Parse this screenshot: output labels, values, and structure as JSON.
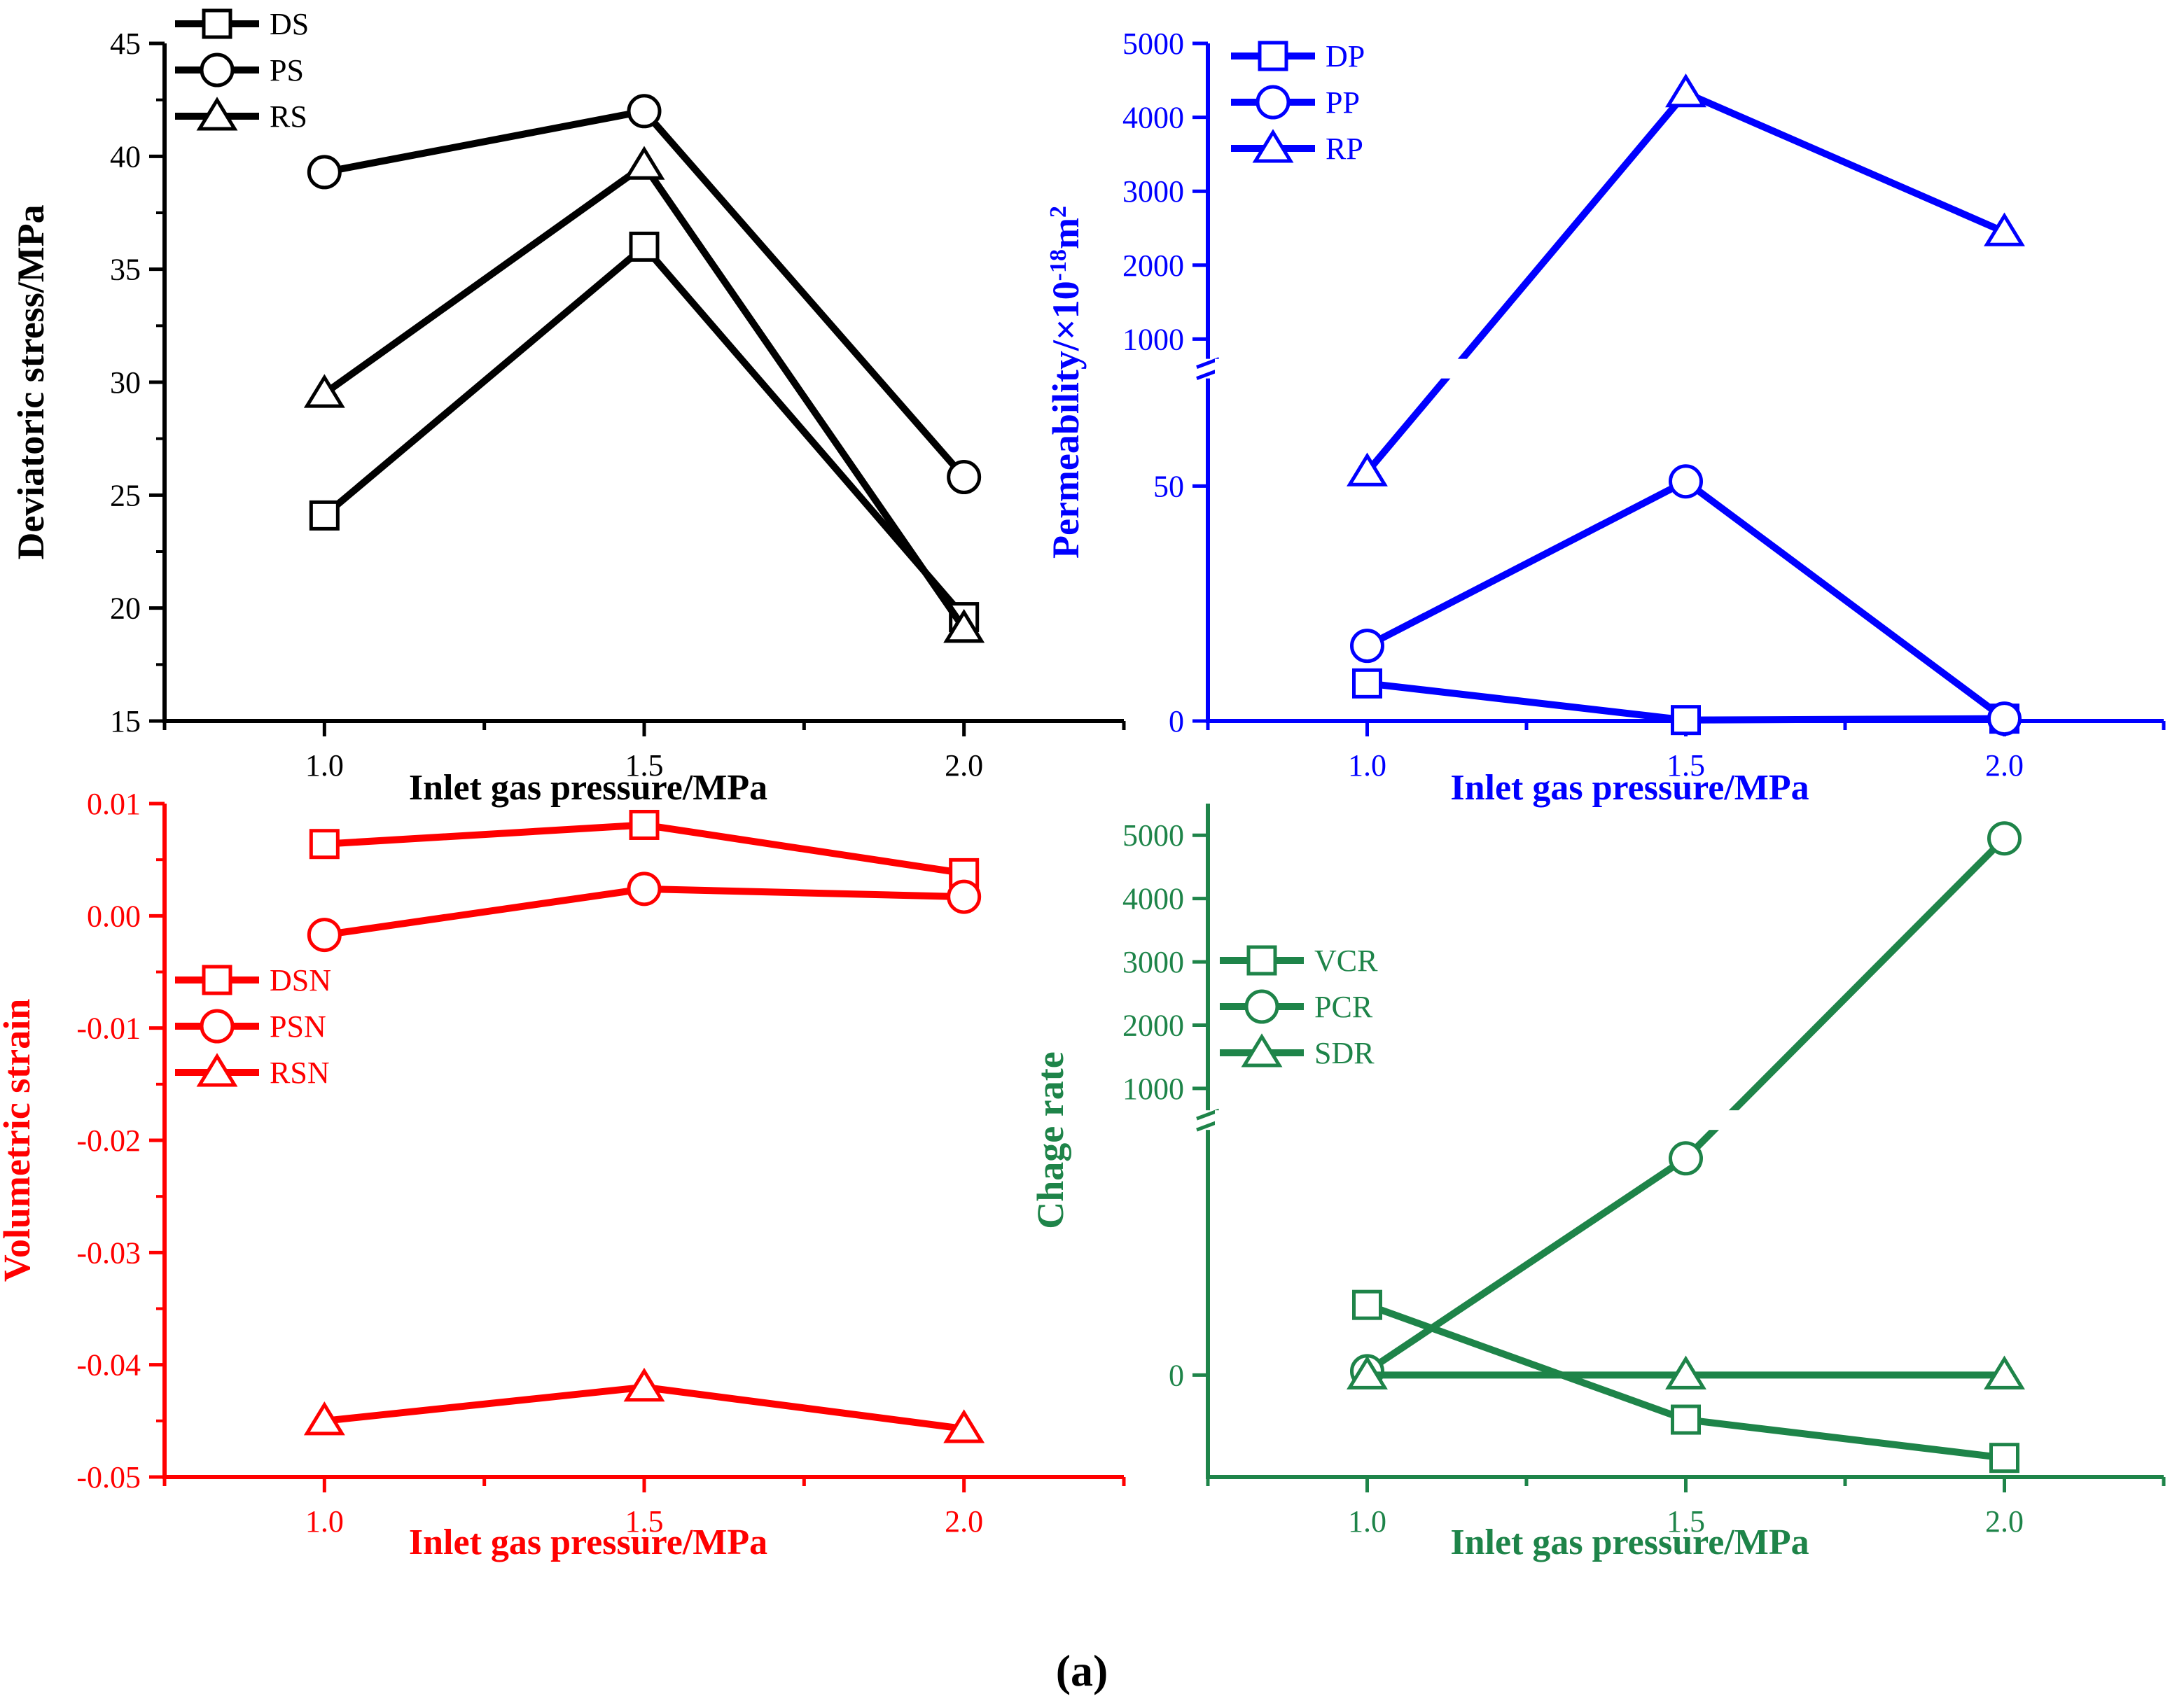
{
  "figure": {
    "label": "(a)"
  },
  "chart_data": [
    {
      "id": "stress",
      "type": "line",
      "color": "#000000",
      "ylabel": "Deviatoric stress/MPa",
      "xlabel": "Inlet gas pressure/MPa",
      "x": [
        1.0,
        1.5,
        2.0
      ],
      "xticks": [
        "1.0",
        "1.5",
        "2.0"
      ],
      "xlim": [
        0.75,
        2.25
      ],
      "ylim": [
        15,
        45
      ],
      "yticks": [
        "15",
        "20",
        "25",
        "30",
        "35",
        "40",
        "45"
      ],
      "yticks_values": [
        15,
        20,
        25,
        30,
        35,
        40,
        45
      ],
      "legend_position": "top-left",
      "series": [
        {
          "name": "DS",
          "marker": "square",
          "values": [
            24.1,
            36.0,
            19.6
          ]
        },
        {
          "name": "PS",
          "marker": "circle",
          "values": [
            39.3,
            42.0,
            25.8
          ]
        },
        {
          "name": "RS",
          "marker": "triangle",
          "values": [
            29.5,
            39.6,
            19.1
          ]
        }
      ]
    },
    {
      "id": "permeability",
      "type": "line",
      "broken_axis": true,
      "color": "#0000ff",
      "ylabel_main": "Permeability/×10",
      "ylabel_exp": "-18",
      "ylabel_unit": "m",
      "ylabel_unit_exp": "2",
      "xlabel": "Inlet gas pressure/MPa",
      "x": [
        1.0,
        1.5,
        2.0
      ],
      "xticks": [
        "1.0",
        "1.5",
        "2.0"
      ],
      "xlim": [
        0.75,
        2.25
      ],
      "ylim_lower": [
        0,
        75
      ],
      "ylim_upper": [
        600,
        5000
      ],
      "yticks": [
        "0",
        "50",
        "1000",
        "2000",
        "3000",
        "4000",
        "5000"
      ],
      "yticks_values": [
        0,
        50,
        1000,
        2000,
        3000,
        4000,
        5000
      ],
      "legend_position": "top-left",
      "series": [
        {
          "name": "DP",
          "marker": "square",
          "values": [
            8,
            0.2,
            0.5
          ]
        },
        {
          "name": "PP",
          "marker": "circle",
          "values": [
            16,
            51,
            0.5
          ]
        },
        {
          "name": "RP",
          "marker": "triangle",
          "values": [
            53,
            4330,
            2450
          ]
        }
      ]
    },
    {
      "id": "strain",
      "type": "line",
      "color": "#ff0000",
      "ylabel": "Volumetric strain",
      "xlabel": "Inlet gas pressure/MPa",
      "x": [
        1.0,
        1.5,
        2.0
      ],
      "xticks": [
        "1.0",
        "1.5",
        "2.0"
      ],
      "xlim": [
        0.75,
        2.25
      ],
      "ylim": [
        -0.05,
        0.01
      ],
      "yticks": [
        "-0.05",
        "-0.04",
        "-0.03",
        "-0.02",
        "-0.01",
        "0.00",
        "0.01"
      ],
      "yticks_values": [
        -0.05,
        -0.04,
        -0.03,
        -0.02,
        -0.01,
        0.0,
        0.01
      ],
      "legend_position": "left",
      "series": [
        {
          "name": "DSN",
          "marker": "square",
          "values": [
            0.0064,
            0.0081,
            0.0038
          ]
        },
        {
          "name": "PSN",
          "marker": "circle",
          "values": [
            -0.0017,
            0.0024,
            0.0017
          ]
        },
        {
          "name": "RSN",
          "marker": "triangle",
          "values": [
            -0.045,
            -0.042,
            -0.0457
          ]
        }
      ]
    },
    {
      "id": "change_rate",
      "type": "line",
      "broken_axis": true,
      "color": "#1e8449",
      "ylabel": "Chage rate",
      "xlabel": "Inlet gas pressure/MPa",
      "x": [
        1.0,
        1.5,
        2.0
      ],
      "xticks": [
        "1.0",
        "1.5",
        "2.0"
      ],
      "xlim": [
        0.75,
        2.25
      ],
      "ylim_lower": [
        -0.8,
        2.0
      ],
      "ylim_upper": [
        500,
        5500
      ],
      "yticks": [
        "0",
        "1000",
        "2000",
        "3000",
        "4000",
        "5000"
      ],
      "yticks_values": [
        0,
        1000,
        2000,
        3000,
        4000,
        5000
      ],
      "legend_position": "left",
      "series": [
        {
          "name": "VCR",
          "marker": "square",
          "values": [
            0.55,
            -0.35,
            -0.65
          ]
        },
        {
          "name": "PCR",
          "marker": "circle",
          "values": [
            0.03,
            1.7,
            4950
          ]
        },
        {
          "name": "SDR",
          "marker": "triangle",
          "values": [
            0.0,
            0.0,
            0.0
          ]
        }
      ]
    }
  ]
}
